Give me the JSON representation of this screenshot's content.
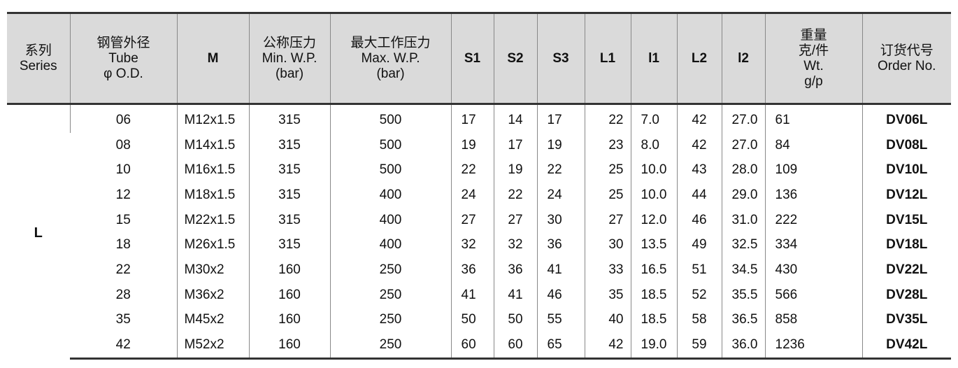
{
  "headers": [
    "系列\nSeries",
    "钢管外径\nTube\nφ O.D.",
    "M",
    "公称压力\nMin. W.P.\n(bar)",
    "最大工作压力\nMax. W.P.\n(bar)",
    "S1",
    "S2",
    "S3",
    "L1",
    "l1",
    "L2",
    "l2",
    "重量\n克/件\nWt.\ng/p",
    "订货代号\nOrder No."
  ],
  "series": "L",
  "rows": [
    [
      "06",
      "M12x1.5",
      "315",
      "500",
      "17",
      "14",
      "17",
      "22",
      "7.0",
      "42",
      "27.0",
      "61",
      "DV06L"
    ],
    [
      "08",
      "M14x1.5",
      "315",
      "500",
      "19",
      "17",
      "19",
      "23",
      "8.0",
      "42",
      "27.0",
      "84",
      "DV08L"
    ],
    [
      "10",
      "M16x1.5",
      "315",
      "500",
      "22",
      "19",
      "22",
      "25",
      "10.0",
      "43",
      "28.0",
      "109",
      "DV10L"
    ],
    [
      "12",
      "M18x1.5",
      "315",
      "400",
      "24",
      "22",
      "24",
      "25",
      "10.0",
      "44",
      "29.0",
      "136",
      "DV12L"
    ],
    [
      "15",
      "M22x1.5",
      "315",
      "400",
      "27",
      "27",
      "30",
      "27",
      "12.0",
      "46",
      "31.0",
      "222",
      "DV15L"
    ],
    [
      "18",
      "M26x1.5",
      "315",
      "400",
      "32",
      "32",
      "36",
      "30",
      "13.5",
      "49",
      "32.5",
      "334",
      "DV18L"
    ],
    [
      "22",
      "M30x2",
      "160",
      "250",
      "36",
      "36",
      "41",
      "33",
      "16.5",
      "51",
      "34.5",
      "430",
      "DV22L"
    ],
    [
      "28",
      "M36x2",
      "160",
      "250",
      "41",
      "41",
      "46",
      "35",
      "18.5",
      "52",
      "35.5",
      "566",
      "DV28L"
    ],
    [
      "35",
      "M45x2",
      "160",
      "250",
      "50",
      "50",
      "55",
      "40",
      "18.5",
      "58",
      "36.5",
      "858",
      "DV35L"
    ],
    [
      "42",
      "M52x2",
      "160",
      "250",
      "60",
      "60",
      "65",
      "42",
      "19.0",
      "59",
      "36.0",
      "1236",
      "DV42L"
    ]
  ]
}
